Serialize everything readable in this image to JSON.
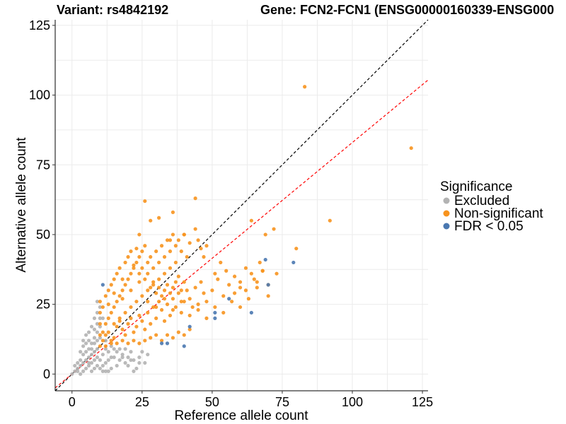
{
  "chart_data": {
    "type": "scatter",
    "title_left": "Variant: rs4842192",
    "title_right": "Gene: FCN2-FCN1 (ENSG00000160339-ENSG000",
    "xlabel": "Reference allele count",
    "ylabel": "Alternative allele count",
    "xlim": [
      -6,
      127
    ],
    "ylim": [
      -6,
      127
    ],
    "xticks": [
      0,
      25,
      50,
      75,
      100,
      125
    ],
    "yticks": [
      0,
      25,
      50,
      75,
      100,
      125
    ],
    "grid": true,
    "legend": {
      "title": "Significance",
      "position": "right",
      "entries": [
        {
          "label": "Excluded",
          "color": "#b3b3b3"
        },
        {
          "label": "Non-significant",
          "color": "#f7931e"
        },
        {
          "label": "FDR < 0.05",
          "color": "#4a78b0"
        }
      ]
    },
    "reference_lines": [
      {
        "name": "identity",
        "slope": 1.0,
        "intercept": 0,
        "color": "#000000",
        "dash": "dashed"
      },
      {
        "name": "fit",
        "slope": 0.83,
        "intercept": 0,
        "color": "#ff0000",
        "dash": "dashed"
      }
    ],
    "series": [
      {
        "name": "Excluded",
        "color": "#b3b3b3",
        "points": [
          [
            0,
            0
          ],
          [
            1,
            1
          ],
          [
            2,
            1
          ],
          [
            2,
            2
          ],
          [
            3,
            0
          ],
          [
            3,
            3
          ],
          [
            4,
            1
          ],
          [
            4,
            4
          ],
          [
            5,
            2
          ],
          [
            5,
            5
          ],
          [
            6,
            3
          ],
          [
            6,
            6
          ],
          [
            7,
            1
          ],
          [
            7,
            4
          ],
          [
            7,
            7
          ],
          [
            8,
            2
          ],
          [
            8,
            5
          ],
          [
            8,
            8
          ],
          [
            9,
            3
          ],
          [
            9,
            6
          ],
          [
            9,
            9
          ],
          [
            2,
            4
          ],
          [
            3,
            5
          ],
          [
            4,
            7
          ],
          [
            5,
            8
          ],
          [
            6,
            9
          ],
          [
            6,
            12
          ],
          [
            7,
            11
          ],
          [
            8,
            13
          ],
          [
            8,
            16
          ],
          [
            9,
            15
          ],
          [
            9,
            18
          ],
          [
            10,
            20
          ],
          [
            9,
            22
          ],
          [
            10,
            2
          ],
          [
            11,
            3
          ],
          [
            12,
            4
          ],
          [
            13,
            5
          ],
          [
            14,
            2
          ],
          [
            15,
            6
          ],
          [
            16,
            3
          ],
          [
            17,
            5
          ],
          [
            18,
            7
          ],
          [
            19,
            4
          ],
          [
            20,
            6
          ],
          [
            21,
            8
          ],
          [
            22,
            5
          ],
          [
            23,
            2
          ],
          [
            24,
            6
          ],
          [
            25,
            8
          ],
          [
            26,
            4
          ],
          [
            27,
            7
          ],
          [
            22,
            1
          ],
          [
            5,
            14
          ],
          [
            7,
            17
          ],
          [
            8,
            20
          ],
          [
            4,
            10
          ],
          [
            6,
            15
          ],
          [
            3,
            8
          ],
          [
            10,
            24
          ],
          [
            9,
            26
          ],
          [
            1,
            3
          ],
          [
            11,
            7
          ],
          [
            12,
            9
          ],
          [
            13,
            8
          ],
          [
            14,
            6
          ],
          [
            15,
            9
          ],
          [
            16,
            8
          ],
          [
            17,
            9
          ],
          [
            18,
            6
          ],
          [
            19,
            9
          ],
          [
            20,
            3
          ],
          [
            21,
            5
          ],
          [
            24,
            4
          ],
          [
            12,
            1
          ],
          [
            10,
            5
          ],
          [
            11,
            1
          ],
          [
            13,
            1
          ],
          [
            6,
            4
          ],
          [
            7,
            9
          ],
          [
            8,
            11
          ],
          [
            10,
            13
          ],
          [
            10,
            17
          ],
          [
            11,
            20
          ],
          [
            5,
            11
          ],
          [
            4,
            12
          ],
          [
            9,
            12
          ],
          [
            12,
            12
          ],
          [
            14,
            10
          ]
        ]
      },
      {
        "name": "Non-significant",
        "color": "#f7931e",
        "points": [
          [
            10,
            10
          ],
          [
            11,
            12
          ],
          [
            12,
            14
          ],
          [
            13,
            15
          ],
          [
            14,
            11
          ],
          [
            15,
            13
          ],
          [
            16,
            17
          ],
          [
            17,
            19
          ],
          [
            18,
            16
          ],
          [
            19,
            14
          ],
          [
            20,
            18
          ],
          [
            21,
            20
          ],
          [
            22,
            15
          ],
          [
            23,
            17
          ],
          [
            24,
            21
          ],
          [
            25,
            19
          ],
          [
            26,
            16
          ],
          [
            27,
            22
          ],
          [
            28,
            18
          ],
          [
            29,
            24
          ],
          [
            30,
            20
          ],
          [
            31,
            26
          ],
          [
            32,
            23
          ],
          [
            33,
            19
          ],
          [
            34,
            25
          ],
          [
            35,
            21
          ],
          [
            36,
            27
          ],
          [
            37,
            24
          ],
          [
            38,
            29
          ],
          [
            39,
            22
          ],
          [
            40,
            26
          ],
          [
            41,
            30
          ],
          [
            42,
            27
          ],
          [
            43,
            24
          ],
          [
            44,
            31
          ],
          [
            45,
            25
          ],
          [
            46,
            33
          ],
          [
            47,
            29
          ],
          [
            48,
            26
          ],
          [
            50,
            30
          ],
          [
            52,
            34
          ],
          [
            54,
            28
          ],
          [
            56,
            32
          ],
          [
            58,
            35
          ],
          [
            60,
            31
          ],
          [
            62,
            38
          ],
          [
            64,
            36
          ],
          [
            66,
            33
          ],
          [
            68,
            37
          ],
          [
            70,
            32
          ],
          [
            11,
            15
          ],
          [
            12,
            18
          ],
          [
            13,
            20
          ],
          [
            14,
            22
          ],
          [
            15,
            24
          ],
          [
            16,
            26
          ],
          [
            17,
            28
          ],
          [
            18,
            30
          ],
          [
            19,
            32
          ],
          [
            20,
            34
          ],
          [
            21,
            36
          ],
          [
            22,
            38
          ],
          [
            23,
            40
          ],
          [
            24,
            42
          ],
          [
            25,
            44
          ],
          [
            26,
            46
          ],
          [
            27,
            40
          ],
          [
            28,
            42
          ],
          [
            29,
            38
          ],
          [
            30,
            44
          ],
          [
            31,
            40
          ],
          [
            32,
            46
          ],
          [
            33,
            42
          ],
          [
            34,
            48
          ],
          [
            35,
            44
          ],
          [
            36,
            50
          ],
          [
            37,
            46
          ],
          [
            38,
            48
          ],
          [
            39,
            44
          ],
          [
            40,
            50
          ],
          [
            42,
            47
          ],
          [
            44,
            52
          ],
          [
            45,
            48
          ],
          [
            46,
            45
          ],
          [
            47,
            42
          ],
          [
            48,
            46
          ],
          [
            10,
            14
          ],
          [
            10,
            18
          ],
          [
            10,
            22
          ],
          [
            10,
            26
          ],
          [
            11,
            24
          ],
          [
            12,
            28
          ],
          [
            13,
            30
          ],
          [
            14,
            32
          ],
          [
            15,
            34
          ],
          [
            16,
            36
          ],
          [
            17,
            38
          ],
          [
            18,
            34
          ],
          [
            19,
            40
          ],
          [
            20,
            42
          ],
          [
            21,
            44
          ],
          [
            22,
            39
          ],
          [
            23,
            45
          ],
          [
            24,
            36
          ],
          [
            25,
            38
          ],
          [
            26,
            34
          ],
          [
            27,
            36
          ],
          [
            28,
            31
          ],
          [
            29,
            33
          ],
          [
            30,
            29
          ],
          [
            31,
            31
          ],
          [
            32,
            28
          ],
          [
            33,
            30
          ],
          [
            34,
            32
          ],
          [
            35,
            29
          ],
          [
            36,
            31
          ],
          [
            37,
            33
          ],
          [
            38,
            35
          ],
          [
            39,
            30
          ],
          [
            40,
            33
          ],
          [
            12,
            10
          ],
          [
            14,
            12
          ],
          [
            16,
            11
          ],
          [
            18,
            12
          ],
          [
            20,
            11
          ],
          [
            22,
            12
          ],
          [
            24,
            11
          ],
          [
            26,
            12
          ],
          [
            28,
            13
          ],
          [
            30,
            14
          ],
          [
            32,
            12
          ],
          [
            34,
            14
          ],
          [
            36,
            13
          ],
          [
            38,
            15
          ],
          [
            40,
            14
          ],
          [
            42,
            16
          ],
          [
            15,
            18
          ],
          [
            17,
            20
          ],
          [
            19,
            22
          ],
          [
            21,
            24
          ],
          [
            23,
            26
          ],
          [
            25,
            28
          ],
          [
            27,
            30
          ],
          [
            29,
            32
          ],
          [
            31,
            34
          ],
          [
            33,
            36
          ],
          [
            35,
            38
          ],
          [
            37,
            40
          ],
          [
            13,
            25
          ],
          [
            15,
            29
          ],
          [
            18,
            27
          ],
          [
            21,
            30
          ],
          [
            24,
            33
          ],
          [
            27,
            26
          ],
          [
            30,
            24
          ],
          [
            33,
            27
          ],
          [
            36,
            23
          ],
          [
            39,
            26
          ],
          [
            42,
            21
          ],
          [
            45,
            23
          ],
          [
            48,
            20
          ],
          [
            51,
            24
          ],
          [
            54,
            22
          ],
          [
            57,
            26
          ],
          [
            60,
            24
          ],
          [
            62,
            30
          ],
          [
            65,
            34
          ],
          [
            67,
            40
          ],
          [
            68,
            37
          ],
          [
            73,
            36
          ],
          [
            64,
            55
          ],
          [
            69,
            50
          ],
          [
            72,
            52
          ],
          [
            80,
            45
          ],
          [
            83,
            103
          ],
          [
            92,
            55
          ],
          [
            121,
            81
          ],
          [
            44,
            63
          ],
          [
            26,
            62
          ],
          [
            31,
            56
          ],
          [
            36,
            58
          ],
          [
            40,
            50
          ],
          [
            24,
            50
          ],
          [
            28,
            55
          ],
          [
            35,
            48
          ],
          [
            41,
            42
          ],
          [
            51,
            36
          ],
          [
            53,
            40
          ],
          [
            55,
            37
          ],
          [
            58,
            29
          ],
          [
            60,
            33
          ],
          [
            63,
            27
          ],
          [
            66,
            31
          ],
          [
            70,
            28
          ]
        ]
      },
      {
        "name": "FDR < 0.05",
        "color": "#4a78b0",
        "points": [
          [
            11,
            32
          ],
          [
            32,
            11
          ],
          [
            34,
            11
          ],
          [
            40,
            10
          ],
          [
            42,
            17
          ],
          [
            51,
            22
          ],
          [
            51,
            20
          ],
          [
            56,
            27
          ],
          [
            64,
            22
          ],
          [
            69,
            41
          ],
          [
            70,
            32
          ],
          [
            79,
            40
          ]
        ]
      }
    ]
  }
}
